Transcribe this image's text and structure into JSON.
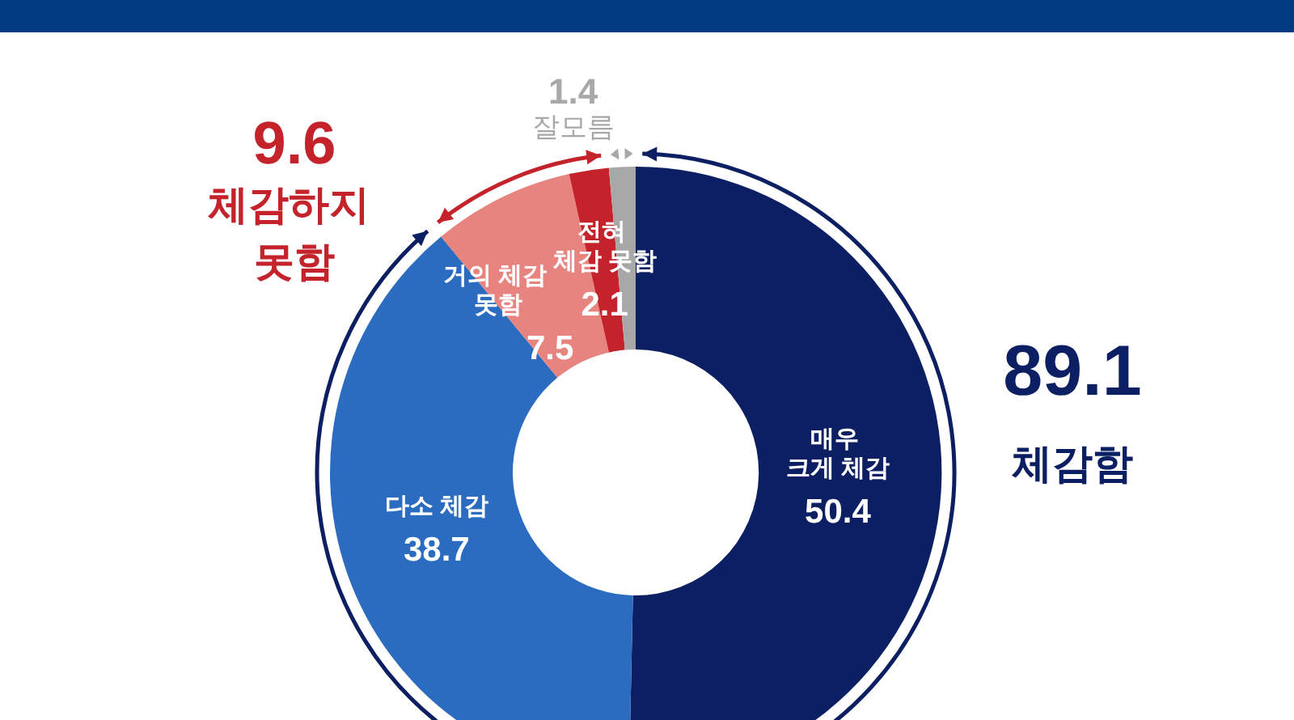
{
  "chart_data": {
    "type": "donut",
    "categories": [
      "매우 크게 체감",
      "다소 체감",
      "거의 체감 못함",
      "전혀 체감 못함",
      "잘모름"
    ],
    "values": [
      50.4,
      38.7,
      7.5,
      2.1,
      1.4
    ],
    "colors": [
      "#0c1f62",
      "#2b6cc1",
      "#e8847f",
      "#c4232b",
      "#a8a8a8"
    ],
    "data_labels": true,
    "annotations": [
      "9.6",
      "체감하지 못함",
      "89.1",
      "체감함"
    ]
  }
}
